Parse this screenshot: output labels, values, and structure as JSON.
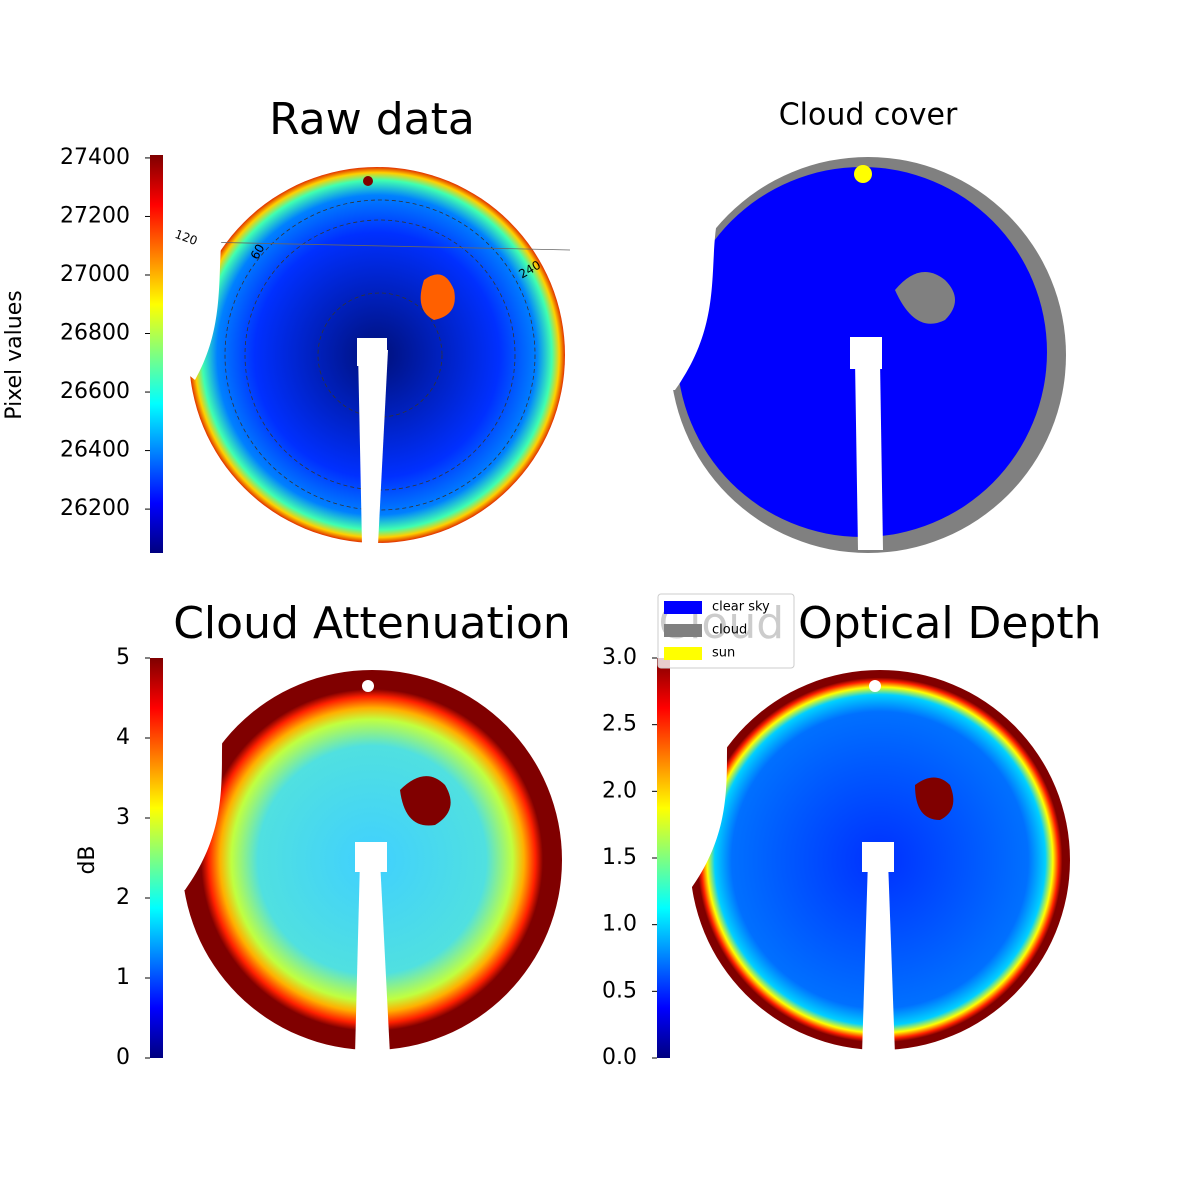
{
  "chart_data": [
    {
      "type": "image",
      "title": "Raw data",
      "colorbar_label": "Pixel values",
      "colormap": "jet",
      "ylim": [
        26050,
        27410
      ],
      "yticks": [
        26200,
        26400,
        26600,
        26800,
        27000,
        27200,
        27400
      ],
      "annotations": [
        "120",
        "60",
        "240"
      ]
    },
    {
      "type": "image",
      "title": "Cloud cover",
      "series": [
        {
          "name": "clear sky",
          "color": "#0000ff"
        },
        {
          "name": "cloud",
          "color": "#808080"
        },
        {
          "name": "sun",
          "color": "#ffff00"
        }
      ]
    },
    {
      "type": "image",
      "title": "Cloud Attenuation",
      "colorbar_label": "dB",
      "colormap": "jet",
      "ylim": [
        0,
        5
      ],
      "yticks": [
        0,
        1,
        2,
        3,
        4,
        5
      ]
    },
    {
      "type": "image",
      "title": "Cloud Optical Depth",
      "colormap": "jet",
      "ylim": [
        0,
        3
      ],
      "yticks": [
        {
          "value": 0,
          "label": "0.0"
        },
        0.5,
        {
          "value": 1,
          "label": "1.0"
        },
        1.5,
        {
          "value": 2,
          "label": "2.0"
        },
        2.5,
        {
          "value": 3,
          "label": "3.0"
        }
      ]
    }
  ]
}
